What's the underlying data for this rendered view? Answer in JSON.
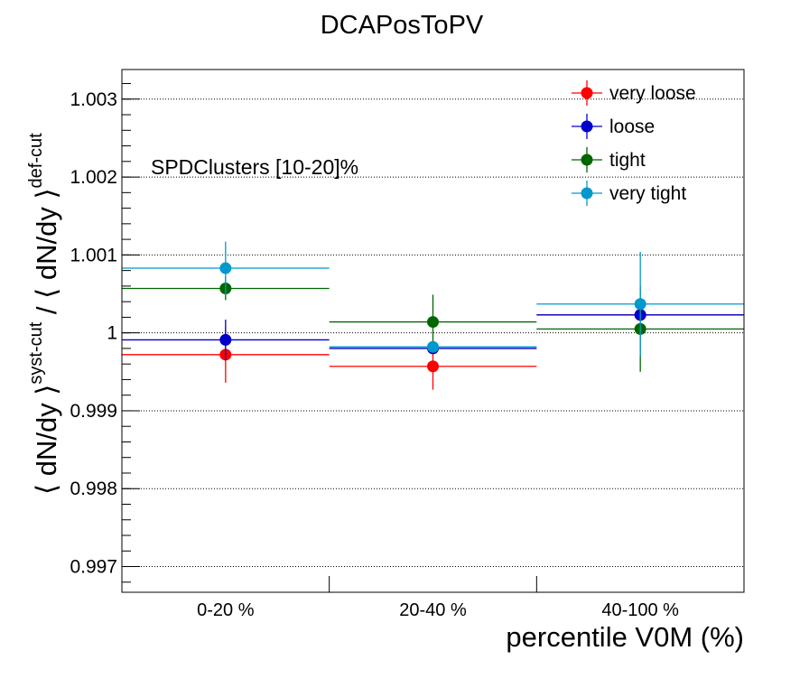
{
  "chart_data": {
    "type": "scatter",
    "title": "DCAPosToPV",
    "xlabel": "percentile V0M (%)",
    "ylabel": {
      "part1": "⟨ dN/dy ⟩",
      "sup1": "syst-cut",
      "sep": " / ",
      "part2": "⟨ dN/dy ⟩",
      "sup2": "def-cut"
    },
    "annotation": "SPDClusters [10-20]%",
    "categories": [
      "0-20 %",
      "20-40 %",
      "40-100 %"
    ],
    "ylim": [
      0.99667,
      1.00338
    ],
    "yticks": [
      {
        "value": 0.997,
        "label": "0.997"
      },
      {
        "value": 0.998,
        "label": "0.998"
      },
      {
        "value": 0.999,
        "label": "0.999"
      },
      {
        "value": 1.0,
        "label": "1"
      },
      {
        "value": 1.001,
        "label": "1.001"
      },
      {
        "value": 1.002,
        "label": "1.002"
      },
      {
        "value": 1.003,
        "label": "1.003"
      }
    ],
    "grid": "horizontal dotted",
    "legend_position": "top-right",
    "series": [
      {
        "name": "very loose",
        "color": "#ff0000",
        "values": [
          0.99972,
          0.99957,
          1.00023
        ],
        "errors": [
          0.00036,
          0.0003,
          0.0
        ]
      },
      {
        "name": "loose",
        "color": "#0000cc",
        "values": [
          0.99991,
          0.9998,
          1.00023
        ],
        "errors": [
          0.00026,
          0.0,
          0.0
        ]
      },
      {
        "name": "tight",
        "color": "#006600",
        "values": [
          1.00057,
          1.00014,
          1.00005
        ],
        "errors": [
          0.00015,
          0.00035,
          0.00055
        ]
      },
      {
        "name": "very tight",
        "color": "#0099cc",
        "values": [
          1.00083,
          0.99982,
          1.00037
        ],
        "errors": [
          0.00034,
          0.0,
          0.00067
        ]
      }
    ]
  }
}
